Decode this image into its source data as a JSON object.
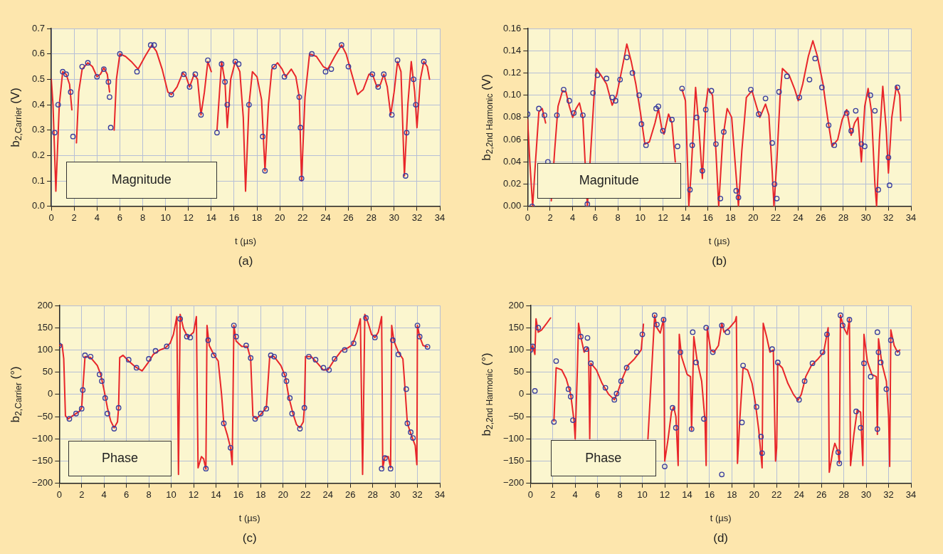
{
  "chart_data": [
    {
      "type": "line",
      "xlabel": "t (µs)",
      "ylabel": "b$_{2,Carrier}$ (V)",
      "annotations": [
        "Magnitude",
        "(a)"
      ],
      "xlim": [
        0,
        34
      ],
      "xticks": [
        0,
        2,
        4,
        6,
        8,
        10,
        12,
        14,
        16,
        18,
        20,
        22,
        24,
        26,
        28,
        30,
        32,
        34
      ],
      "ylim": [
        0,
        0.7
      ],
      "yticks": [
        {
          "value": 0,
          "label": "0.0"
        },
        {
          "value": 0.1,
          "label": "0.1"
        },
        {
          "value": 0.2,
          "label": "0.2"
        },
        {
          "value": 0.3,
          "label": "0.3"
        },
        {
          "value": 0.4,
          "label": "0.4"
        },
        {
          "value": 0.5,
          "label": "0.5"
        },
        {
          "value": 0.6,
          "label": "0.6"
        },
        {
          "value": 0.7,
          "label": "0.7"
        }
      ],
      "grid": true,
      "series": [
        {
          "type": "line",
          "color": "#e8262a",
          "marker": "none",
          "x": [
            0,
            0.15,
            0.4,
            0.7,
            1.0,
            1.3,
            1.6,
            1.8,
            2.0,
            2.2,
            2.4,
            2.7,
            3.2,
            3.6,
            4.0,
            4.3,
            4.6,
            4.9,
            5.1,
            5.3,
            5.5,
            5.7,
            6.0,
            6.5,
            7.0,
            7.6,
            8.2,
            8.8,
            9.2,
            9.7,
            10.2,
            10.5,
            11.0,
            11.5,
            11.8,
            12.1,
            12.5,
            12.8,
            13.1,
            13.4,
            13.7,
            14.0,
            14.4,
            14.5,
            14.9,
            15.2,
            15.4,
            15.7,
            16.1,
            16.5,
            16.8,
            17.0,
            17.3,
            17.6,
            18.0,
            18.4,
            18.7,
            19.0,
            19.3,
            19.8,
            20.2,
            20.5,
            21.0,
            21.4,
            21.7,
            21.9,
            22.2,
            22.6,
            23.2,
            23.8,
            24.2,
            24.8,
            25.4,
            25.8,
            26.3,
            26.8,
            27.3,
            27.8,
            28.1,
            28.5,
            28.8,
            29.1,
            29.4,
            29.7,
            30.0,
            30.3,
            30.6,
            30.9,
            31.2,
            31.5,
            31.8,
            32.0,
            32.3,
            32.6,
            32.9,
            33.1
          ],
          "values": [
            0.5,
            0.4,
            0.06,
            0.4,
            0.53,
            0.52,
            0.48,
            0.38,
            null,
            0.25,
            0.45,
            0.54,
            0.565,
            0.55,
            0.51,
            0.52,
            0.545,
            0.52,
            0.45,
            null,
            0.3,
            0.5,
            0.6,
            0.59,
            0.57,
            0.54,
            0.59,
            0.635,
            0.61,
            0.54,
            0.45,
            0.44,
            0.47,
            0.525,
            0.51,
            0.47,
            0.52,
            0.5,
            0.36,
            0.45,
            0.57,
            0.53,
            null,
            0.3,
            0.57,
            0.49,
            0.31,
            0.5,
            0.57,
            0.53,
            0.35,
            0.06,
            0.4,
            0.53,
            0.51,
            0.42,
            0.14,
            0.4,
            0.54,
            0.565,
            0.54,
            0.51,
            0.54,
            0.51,
            0.43,
            0.1,
            0.43,
            0.6,
            0.59,
            0.55,
            0.54,
            0.59,
            0.635,
            0.6,
            0.52,
            0.44,
            0.46,
            0.52,
            0.52,
            0.47,
            0.48,
            0.52,
            0.47,
            0.36,
            0.45,
            0.57,
            0.53,
            0.12,
            0.4,
            0.57,
            0.45,
            0.31,
            0.5,
            0.57,
            0.55,
            0.5
          ]
        },
        {
          "type": "scatter",
          "color": "#3a3f9e",
          "marker": "circle",
          "x": [
            0.3,
            0.6,
            1.0,
            1.3,
            1.7,
            1.9,
            2.7,
            3.2,
            4.0,
            4.6,
            5.0,
            5.1,
            5.2,
            6.0,
            7.5,
            8.7,
            9.0,
            10.5,
            11.6,
            12.1,
            12.6,
            13.1,
            13.7,
            14.5,
            14.9,
            15.2,
            15.4,
            16.1,
            16.4,
            17.3,
            18.5,
            18.7,
            19.5,
            20.4,
            21.7,
            21.8,
            21.9,
            22.8,
            24.0,
            24.5,
            25.4,
            26.0,
            28.1,
            28.6,
            29.1,
            29.8,
            30.3,
            31.0,
            31.1,
            31.7,
            31.9,
            32.6
          ],
          "values": [
            0.29,
            0.4,
            0.53,
            0.52,
            0.45,
            0.275,
            0.55,
            0.565,
            0.51,
            0.54,
            0.49,
            0.43,
            0.31,
            0.6,
            0.53,
            0.635,
            0.635,
            0.44,
            0.52,
            0.47,
            0.52,
            0.36,
            0.575,
            0.29,
            0.56,
            0.49,
            0.4,
            0.57,
            0.56,
            0.4,
            0.275,
            0.14,
            0.55,
            0.51,
            0.43,
            0.31,
            0.11,
            0.6,
            0.53,
            0.54,
            0.635,
            0.55,
            0.52,
            0.47,
            0.52,
            0.36,
            0.575,
            0.12,
            0.29,
            0.5,
            0.4,
            0.57
          ]
        }
      ]
    },
    {
      "type": "line",
      "xlabel": "t (µs)",
      "ylabel": "b$_{2,2nd Harmonic}$ (V)",
      "annotations": [
        "Magnitude",
        "(b)"
      ],
      "xlim": [
        0,
        34
      ],
      "xticks": [
        0,
        2,
        4,
        6,
        8,
        10,
        12,
        14,
        16,
        18,
        20,
        22,
        24,
        26,
        28,
        30,
        32,
        34
      ],
      "ylim": [
        0,
        0.16
      ],
      "yticks": [
        {
          "value": 0,
          "label": "0.00"
        },
        {
          "value": 0.02,
          "label": "0.02"
        },
        {
          "value": 0.04,
          "label": "0.04"
        },
        {
          "value": 0.06,
          "label": "0.06"
        },
        {
          "value": 0.08,
          "label": "0.08"
        },
        {
          "value": 0.1,
          "label": "0.10"
        },
        {
          "value": 0.12,
          "label": "0.12"
        },
        {
          "value": 0.14,
          "label": "0.14"
        },
        {
          "value": 0.16,
          "label": "0.16"
        }
      ],
      "grid": true,
      "series": [
        {
          "type": "line",
          "color": "#e8262a",
          "marker": "none",
          "x": [
            0,
            0.2,
            0.45,
            0.7,
            1.0,
            1.3,
            1.6,
            1.9,
            2.1,
            2.4,
            2.7,
            3.1,
            3.4,
            3.7,
            4.0,
            4.3,
            4.6,
            4.9,
            5.1,
            5.3,
            5.6,
            5.9,
            6.1,
            6.5,
            7.0,
            7.5,
            7.9,
            8.4,
            8.8,
            9.2,
            9.6,
            10.0,
            10.4,
            10.8,
            11.3,
            11.6,
            11.9,
            12.1,
            12.5,
            12.8,
            13.1,
            13.3,
            13.7,
            14.0,
            14.3,
            14.5,
            14.9,
            15.2,
            15.5,
            15.8,
            16.0,
            16.4,
            16.7,
            16.95,
            17.3,
            17.7,
            18.1,
            18.4,
            18.7,
            19.0,
            19.4,
            19.9,
            20.3,
            20.6,
            21.1,
            21.4,
            21.7,
            21.85,
            22.1,
            22.4,
            22.6,
            23.2,
            23.7,
            24.0,
            24.4,
            24.9,
            25.3,
            25.7,
            26.2,
            26.6,
            27.0,
            27.5,
            27.9,
            28.3,
            28.7,
            29.0,
            29.3,
            29.6,
            29.9,
            30.2,
            30.5,
            30.8,
            30.95,
            31.2,
            31.5,
            31.8,
            32.0,
            32.3,
            32.7,
            33.0,
            33.1
          ],
          "values": [
            0.078,
            0.04,
            0.0,
            0.04,
            0.085,
            0.088,
            0.075,
            null,
            0.005,
            0.05,
            0.09,
            0.104,
            0.103,
            0.09,
            0.08,
            0.088,
            0.093,
            0.08,
            0.04,
            0.0,
            0.05,
            0.1,
            0.124,
            0.118,
            0.11,
            0.091,
            0.1,
            0.125,
            0.146,
            0.13,
            0.11,
            0.085,
            0.056,
            0.058,
            0.075,
            0.088,
            0.07,
            0.065,
            0.083,
            0.075,
            0.04,
            null,
            0.105,
            0.095,
            0.0,
            0.03,
            0.107,
            0.07,
            0.025,
            0.09,
            0.106,
            0.1,
            0.05,
            0.0,
            0.06,
            0.088,
            0.08,
            0.04,
            0.0,
            0.05,
            0.098,
            0.104,
            0.09,
            0.08,
            0.092,
            0.082,
            0.03,
            0.0,
            0.04,
            0.1,
            0.124,
            0.118,
            0.105,
            0.095,
            0.11,
            0.135,
            0.149,
            0.135,
            0.11,
            0.08,
            0.054,
            0.06,
            0.078,
            0.087,
            0.064,
            0.075,
            0.08,
            0.04,
            0.09,
            0.106,
            0.085,
            0.02,
            0.0,
            0.06,
            0.108,
            0.07,
            0.03,
            0.08,
            0.108,
            0.1,
            0.077
          ]
        },
        {
          "type": "scatter",
          "color": "#3a3f9e",
          "marker": "circle",
          "x": [
            0,
            0.4,
            1.0,
            1.5,
            1.8,
            2.6,
            3.2,
            3.7,
            4.1,
            4.9,
            5.3,
            5.8,
            6.2,
            7.0,
            7.5,
            7.8,
            8.2,
            8.8,
            9.3,
            9.9,
            10.1,
            10.5,
            11.4,
            11.6,
            12.0,
            12.8,
            13.3,
            13.7,
            14.4,
            14.6,
            15.0,
            15.5,
            15.8,
            16.3,
            16.7,
            17.1,
            17.4,
            18.5,
            18.7,
            19.8,
            20.5,
            21.1,
            21.7,
            21.9,
            22.1,
            22.3,
            23.0,
            24.1,
            25.0,
            25.5,
            26.1,
            26.7,
            27.2,
            28.3,
            28.7,
            29.1,
            29.6,
            29.9,
            30.4,
            30.8,
            31.1,
            32.0,
            32.1,
            32.8
          ],
          "values": [
            0.083,
            0.0,
            0.088,
            0.082,
            0.04,
            0.082,
            0.105,
            0.095,
            0.084,
            0.082,
            0.002,
            0.102,
            0.118,
            0.115,
            0.098,
            0.095,
            0.114,
            0.134,
            0.12,
            0.1,
            0.074,
            0.055,
            0.088,
            0.09,
            0.068,
            0.078,
            0.054,
            0.106,
            0.015,
            0.055,
            0.08,
            0.032,
            0.087,
            0.104,
            0.056,
            0.007,
            0.067,
            0.014,
            0.008,
            0.105,
            0.083,
            0.097,
            0.057,
            0.02,
            0.007,
            0.103,
            0.117,
            0.098,
            0.114,
            0.133,
            0.107,
            0.073,
            0.055,
            0.084,
            0.068,
            0.086,
            0.056,
            0.054,
            0.1,
            0.086,
            0.015,
            0.044,
            0.019,
            0.107
          ]
        }
      ]
    },
    {
      "type": "line",
      "xlabel": "t (µs)",
      "ylabel": "b$_{2,Carrier}$ (°)",
      "annotations": [
        "Phase",
        "(c)"
      ],
      "xlim": [
        0,
        34
      ],
      "xticks": [
        0,
        2,
        4,
        6,
        8,
        10,
        12,
        14,
        16,
        18,
        20,
        22,
        24,
        26,
        28,
        30,
        32,
        34
      ],
      "ylim": [
        -200,
        200
      ],
      "yticks": [
        {
          "value": -200,
          "label": "−200"
        },
        {
          "value": -150,
          "label": "−150"
        },
        {
          "value": -100,
          "label": "−100"
        },
        {
          "value": -50,
          "label": "−50"
        },
        0,
        50,
        100,
        150,
        200
      ],
      "grid": true,
      "series": [
        {
          "type": "line",
          "color": "#e8262a",
          "marker": "none",
          "x": [
            0,
            0.25,
            0.4,
            0.55,
            0.8,
            1.2,
            1.8,
            2.0,
            2.1,
            2.3,
            2.8,
            3.4,
            3.7,
            4.0,
            4.3,
            4.6,
            4.9,
            5.2,
            5.3,
            5.4,
            5.7,
            6.2,
            6.8,
            7.4,
            7.9,
            8.4,
            9.0,
            9.5,
            9.9,
            10.2,
            10.5,
            10.65,
            10.8,
            11.1,
            11.5,
            12.0,
            12.25,
            12.4,
            12.7,
            12.9,
            13.1,
            13.2,
            13.4,
            13.8,
            14.2,
            14.5,
            14.7,
            15.0,
            15.3,
            15.45,
            15.6,
            15.8,
            16.3,
            16.8,
            17.1,
            17.3,
            17.6,
            18.0,
            18.5,
            18.8,
            19.2,
            19.8,
            20.2,
            20.5,
            20.9,
            21.2,
            21.5,
            21.8,
            21.9,
            22.0,
            22.5,
            23.0,
            23.6,
            24.0,
            24.5,
            25.2,
            25.8,
            26.2,
            26.6,
            26.9,
            27.1,
            27.3,
            27.6,
            27.9,
            28.2,
            28.5,
            28.8,
            28.9,
            29.1,
            29.4,
            29.6,
            29.7,
            29.9,
            30.3,
            30.7,
            30.9,
            31.1,
            31.5,
            31.8,
            31.95,
            32.0,
            32.2,
            32.5,
            32.9
          ],
          "values": [
            110,
            112,
            80,
            -48,
            -55,
            -48,
            -38,
            -30,
            10,
            85,
            83,
            65,
            45,
            10,
            -30,
            -60,
            -75,
            -62,
            -30,
            83,
            88,
            75,
            62,
            53,
            70,
            90,
            100,
            105,
            115,
            135,
            175,
            -180,
            180,
            148,
            128,
            140,
            175,
            -165,
            -140,
            -145,
            -168,
            155,
            110,
            90,
            75,
            0,
            -65,
            -90,
            -120,
            -158,
            155,
            120,
            108,
            108,
            80,
            -48,
            -55,
            -45,
            -30,
            85,
            85,
            65,
            40,
            -5,
            -45,
            -68,
            -75,
            -62,
            -30,
            85,
            85,
            72,
            55,
            55,
            75,
            98,
            105,
            112,
            140,
            170,
            -180,
            180,
            160,
            135,
            128,
            140,
            175,
            -165,
            -140,
            -140,
            -165,
            155,
            120,
            95,
            80,
            10,
            -65,
            -95,
            -115,
            -158,
            155,
            130,
            110,
            107
          ]
        },
        {
          "type": "scatter",
          "color": "#3a3f9e",
          "marker": "circle",
          "x": [
            0,
            0.9,
            1.5,
            2.0,
            2.1,
            2.3,
            2.8,
            3.6,
            3.8,
            4.1,
            4.3,
            4.9,
            5.3,
            6.2,
            6.9,
            8.0,
            8.6,
            9.6,
            10.8,
            11.4,
            11.7,
            13.1,
            13.3,
            13.8,
            14.7,
            15.3,
            15.6,
            15.8,
            16.7,
            17.1,
            17.5,
            18.0,
            18.5,
            18.9,
            19.2,
            20.1,
            20.3,
            20.6,
            20.8,
            21.5,
            21.9,
            22.3,
            22.9,
            23.6,
            24.1,
            24.6,
            25.5,
            26.3,
            27.4,
            28.2,
            28.8,
            29.1,
            29.6,
            29.8,
            30.3,
            31.0,
            31.1,
            31.4,
            31.6,
            32.0,
            32.2,
            32.9
          ],
          "values": [
            110,
            -55,
            -43,
            -32,
            10,
            88,
            85,
            45,
            30,
            -8,
            -43,
            -77,
            -30,
            78,
            60,
            80,
            98,
            108,
            170,
            130,
            128,
            -167,
            122,
            88,
            -65,
            -120,
            155,
            130,
            110,
            82,
            -55,
            -43,
            -32,
            88,
            85,
            45,
            30,
            -8,
            -43,
            -77,
            -30,
            85,
            78,
            60,
            55,
            80,
            100,
            115,
            172,
            128,
            -167,
            -143,
            -167,
            122,
            90,
            12,
            -65,
            -85,
            -98,
            155,
            130,
            107
          ]
        }
      ]
    },
    {
      "type": "line",
      "xlabel": "t (µs)",
      "ylabel": "b$_{2,2nd Harmonic}$ (°)",
      "annotations": [
        "Phase",
        "(d)"
      ],
      "xlim": [
        0,
        34
      ],
      "xticks": [
        0,
        2,
        4,
        6,
        8,
        10,
        12,
        14,
        16,
        18,
        20,
        22,
        24,
        26,
        28,
        30,
        32,
        34
      ],
      "ylim": [
        -200,
        200
      ],
      "yticks": [
        {
          "value": -200,
          "label": "−200"
        },
        {
          "value": -150,
          "label": "−150"
        },
        {
          "value": -100,
          "label": "−100"
        },
        {
          "value": -50,
          "label": "−50"
        },
        0,
        50,
        100,
        150,
        200
      ],
      "grid": true,
      "series": [
        {
          "type": "line",
          "color": "#e8262a",
          "marker": "none",
          "x": [
            0,
            0.2,
            0.4,
            0.5,
            0.7,
            1.0,
            1.4,
            1.8,
            1.9,
            2.1,
            2.3,
            2.8,
            3.2,
            3.6,
            3.9,
            4.0,
            4.2,
            4.3,
            4.5,
            4.8,
            5.1,
            5.2,
            5.3,
            5.4,
            5.9,
            6.4,
            7.0,
            7.5,
            7.8,
            8.2,
            8.7,
            9.3,
            9.9,
            10.1,
            10.15,
            10.5,
            11.1,
            11.3,
            11.6,
            11.9,
            12.0,
            12.3,
            12.6,
            12.8,
            13.0,
            13.2,
            13.3,
            13.5,
            14.0,
            14.3,
            14.4,
            14.6,
            14.9,
            15.3,
            15.6,
            15.7,
            15.8,
            16.1,
            16.4,
            16.8,
            17.1,
            17.3,
            17.8,
            18.3,
            18.4,
            18.5,
            18.7,
            19.0,
            19.4,
            19.8,
            20.1,
            20.4,
            20.7,
            20.8,
            21.1,
            21.4,
            21.7,
            21.9,
            22.0,
            22.1,
            22.5,
            23.0,
            23.5,
            23.9,
            24.2,
            24.6,
            25.1,
            25.7,
            26.2,
            26.6,
            26.7,
            27.0,
            27.2,
            27.5,
            27.6,
            27.7,
            28.0,
            28.3,
            28.5,
            28.6,
            28.9,
            29.2,
            29.5,
            29.7,
            29.8,
            30.1,
            30.5,
            30.9,
            31.0,
            31.1,
            31.4,
            31.8,
            32.0,
            32.1,
            32.2,
            32.5,
            32.8,
            33.0
          ],
          "values": [
            98,
            110,
            90,
            170,
            140,
            145,
            158,
            172,
            null,
            -60,
            60,
            55,
            35,
            0,
            -60,
            -100,
            60,
            160,
            130,
            95,
            105,
            100,
            -100,
            70,
            55,
            25,
            0,
            -12,
            5,
            35,
            65,
            80,
            100,
            158,
            null,
            -100,
            178,
            150,
            138,
            170,
            -150,
            -100,
            -40,
            -28,
            -50,
            -160,
            135,
            85,
            45,
            40,
            -80,
            130,
            75,
            30,
            -60,
            -160,
            150,
            100,
            95,
            110,
            160,
            140,
            150,
            165,
            175,
            -155,
            -60,
            60,
            55,
            25,
            -20,
            -80,
            -165,
            160,
            130,
            95,
            100,
            -150,
            -120,
            70,
            60,
            25,
            0,
            -13,
            0,
            40,
            65,
            80,
            95,
            150,
            -175,
            -130,
            -110,
            -130,
            -155,
            178,
            150,
            135,
            170,
            -160,
            -90,
            -35,
            -40,
            -160,
            135,
            75,
            45,
            40,
            -90,
            125,
            70,
            30,
            -50,
            -162,
            145,
            110,
            95,
            100
          ]
        },
        {
          "type": "scatter",
          "color": "#3a3f9e",
          "marker": "circle",
          "x": [
            0,
            0.2,
            0.4,
            0.7,
            2.1,
            2.3,
            3.4,
            3.6,
            3.8,
            4.5,
            5.1,
            5.0,
            5.4,
            6.7,
            7.5,
            7.7,
            8.1,
            8.6,
            9.5,
            10.0,
            11.1,
            11.3,
            11.9,
            12.0,
            12.7,
            13.0,
            13.4,
            14.4,
            14.5,
            14.8,
            15.5,
            15.7,
            16.3,
            17.1,
            17.1,
            17.6,
            18.9,
            19.0,
            20.2,
            20.6,
            20.7,
            21.6,
            22.1,
            24.0,
            24.5,
            25.2,
            26.1,
            26.5,
            27.5,
            27.6,
            27.7,
            27.9,
            28.5,
            29.1,
            29.5,
            29.8,
            30.4,
            31.0,
            31.0,
            31.1,
            31.3,
            31.8,
            32.2,
            32.8
          ],
          "values": [
            100,
            108,
            8,
            150,
            -62,
            75,
            12,
            -5,
            -58,
            130,
            127,
            102,
            70,
            15,
            -12,
            2,
            30,
            60,
            95,
            135,
            178,
            157,
            168,
            -162,
            -30,
            -75,
            95,
            -78,
            140,
            72,
            -55,
            150,
            95,
            155,
            -180,
            140,
            -63,
            65,
            -28,
            -95,
            -132,
            102,
            72,
            -12,
            30,
            70,
            95,
            135,
            -130,
            -155,
            178,
            155,
            168,
            -38,
            -75,
            70,
            40,
            -78,
            140,
            95,
            72,
            12,
            122,
            93
          ]
        }
      ]
    }
  ]
}
